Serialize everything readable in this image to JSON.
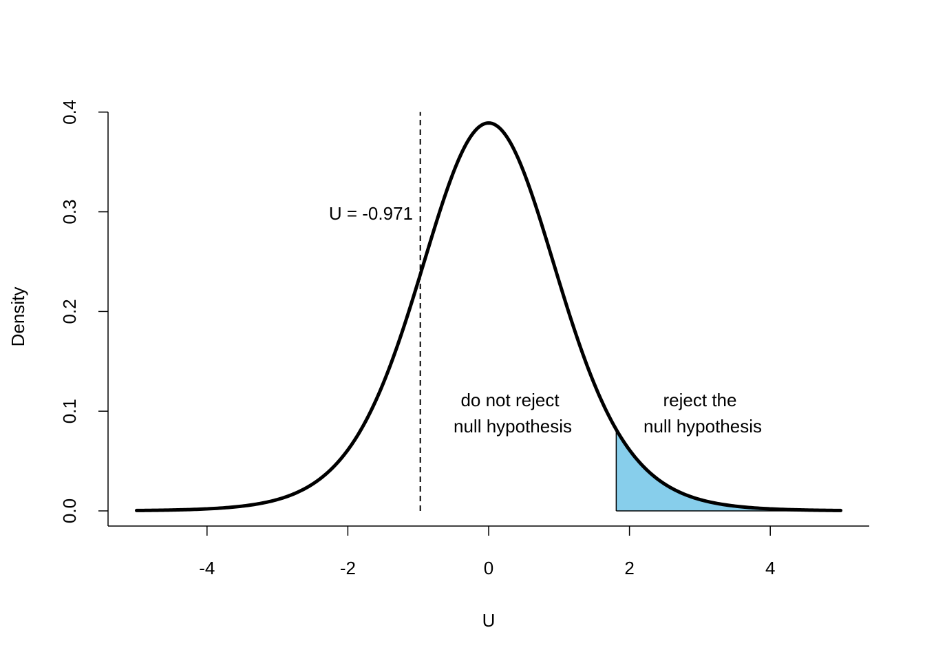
{
  "chart_data": {
    "type": "line",
    "xlabel": "U",
    "ylabel": "Density",
    "xlim": [
      -5,
      5
    ],
    "ylim": [
      0,
      0.4
    ],
    "x_ticks": [
      -4,
      -2,
      0,
      2,
      4
    ],
    "x_tick_labels": [
      "-4",
      "-2",
      "0",
      "2",
      "4"
    ],
    "y_ticks": [
      0.0,
      0.1,
      0.2,
      0.3,
      0.4
    ],
    "y_tick_labels": [
      "0.0",
      "0.1",
      "0.2",
      "0.3",
      "0.4"
    ],
    "distribution": "t",
    "df": 10,
    "curve_x_range": [
      -5,
      5
    ],
    "rejection_region": {
      "from": 1.812,
      "to": 5,
      "fill": "#87CEEB"
    },
    "test_statistic": {
      "value": -0.971,
      "label": "U = -0.971"
    },
    "annotations": [
      {
        "lines": [
          "do not reject",
          "null hypothesis"
        ]
      },
      {
        "lines": [
          "reject the",
          "null hypothesis"
        ]
      }
    ],
    "grid": false,
    "legend": "none"
  }
}
